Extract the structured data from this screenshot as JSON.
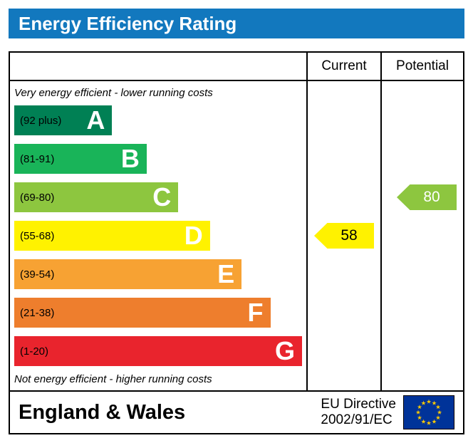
{
  "title": "Energy Efficiency Rating",
  "table": {
    "columns": {
      "current": "Current",
      "potential": "Potential"
    },
    "top_note": "Very energy efficient - lower running costs",
    "bottom_note": "Not energy efficient - higher running costs"
  },
  "bands": [
    {
      "letter": "A",
      "range": "(92 plus)",
      "color": "#008054",
      "width_pct": 34
    },
    {
      "letter": "B",
      "range": "(81-91)",
      "color": "#19b459",
      "width_pct": 46
    },
    {
      "letter": "C",
      "range": "(69-80)",
      "color": "#8dc63f",
      "width_pct": 57
    },
    {
      "letter": "D",
      "range": "(55-68)",
      "color": "#fff200",
      "width_pct": 68
    },
    {
      "letter": "E",
      "range": "(39-54)",
      "color": "#f7a233",
      "width_pct": 79
    },
    {
      "letter": "F",
      "range": "(21-38)",
      "color": "#ee7e2d",
      "width_pct": 89
    },
    {
      "letter": "G",
      "range": "(1-20)",
      "color": "#e9242d",
      "width_pct": 100
    }
  ],
  "ratings": {
    "current": {
      "value": "58",
      "band_index": 3,
      "color": "#fff200",
      "text_color": "#000000"
    },
    "potential": {
      "value": "80",
      "band_index": 2,
      "color": "#8dc63f",
      "text_color": "#ffffff"
    }
  },
  "footer": {
    "region": "England & Wales",
    "directive_line1": "EU Directive",
    "directive_line2": "2002/91/EC"
  },
  "colors": {
    "title_bg": "#1278be",
    "border": "#000000",
    "flag_bg": "#003399",
    "flag_star": "#ffcc00"
  },
  "chart_data": {
    "type": "bar",
    "title": "Energy Efficiency Rating",
    "categories": [
      "A (92 plus)",
      "B (81-91)",
      "C (69-80)",
      "D (55-68)",
      "E (39-54)",
      "F (21-38)",
      "G (1-20)"
    ],
    "values": [
      34,
      46,
      57,
      68,
      79,
      89,
      100
    ],
    "xlabel": "",
    "ylabel": "",
    "legend_position": "none",
    "annotations": [
      {
        "label": "Current",
        "value": 58,
        "band": "D"
      },
      {
        "label": "Potential",
        "value": 80,
        "band": "C"
      }
    ]
  }
}
